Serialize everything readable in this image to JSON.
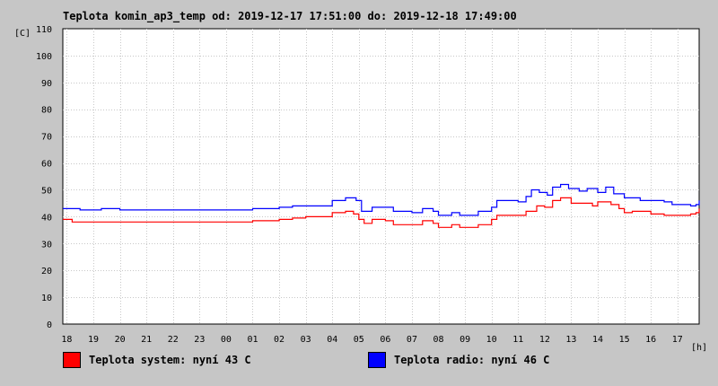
{
  "chart_data": {
    "type": "line",
    "title": "Teplota komin_ap3_temp od: 2019-12-17 17:51:00 do: 2019-12-18 17:49:00",
    "ylabel": "[C]",
    "xlabel": "[h]",
    "ylim": [
      0,
      110
    ],
    "yticks": [
      0,
      10,
      20,
      30,
      40,
      50,
      60,
      70,
      80,
      90,
      100,
      110
    ],
    "xlim": [
      17.85,
      41.82
    ],
    "xticks": [
      {
        "x": 18,
        "label": "18"
      },
      {
        "x": 19,
        "label": "19"
      },
      {
        "x": 20,
        "label": "20"
      },
      {
        "x": 21,
        "label": "21"
      },
      {
        "x": 22,
        "label": "22"
      },
      {
        "x": 23,
        "label": "23"
      },
      {
        "x": 24,
        "label": "00"
      },
      {
        "x": 25,
        "label": "01"
      },
      {
        "x": 26,
        "label": "02"
      },
      {
        "x": 27,
        "label": "03"
      },
      {
        "x": 28,
        "label": "04"
      },
      {
        "x": 29,
        "label": "05"
      },
      {
        "x": 30,
        "label": "06"
      },
      {
        "x": 31,
        "label": "07"
      },
      {
        "x": 32,
        "label": "08"
      },
      {
        "x": 33,
        "label": "09"
      },
      {
        "x": 34,
        "label": "10"
      },
      {
        "x": 35,
        "label": "11"
      },
      {
        "x": 36,
        "label": "12"
      },
      {
        "x": 37,
        "label": "13"
      },
      {
        "x": 38,
        "label": "14"
      },
      {
        "x": 39,
        "label": "15"
      },
      {
        "x": 40,
        "label": "16"
      },
      {
        "x": 41,
        "label": "17"
      }
    ],
    "grid": true,
    "legend_position": "bottom",
    "series": [
      {
        "name": "Teplota system",
        "legend": "Teplota system: nyní 43 C",
        "color": "#ff0000",
        "points": [
          [
            17.85,
            39
          ],
          [
            18.2,
            38
          ],
          [
            19,
            38
          ],
          [
            20,
            38
          ],
          [
            21,
            38
          ],
          [
            22,
            38
          ],
          [
            23,
            38
          ],
          [
            24,
            38
          ],
          [
            25,
            38.5
          ],
          [
            26,
            39
          ],
          [
            26.5,
            39.5
          ],
          [
            27,
            40
          ],
          [
            27.5,
            40
          ],
          [
            28,
            41.5
          ],
          [
            28.5,
            42
          ],
          [
            28.8,
            41
          ],
          [
            29,
            39
          ],
          [
            29.2,
            37.5
          ],
          [
            29.5,
            39
          ],
          [
            30,
            38.5
          ],
          [
            30.3,
            37
          ],
          [
            31,
            37
          ],
          [
            31.4,
            38.5
          ],
          [
            31.8,
            37.5
          ],
          [
            32,
            36
          ],
          [
            32.5,
            37
          ],
          [
            32.8,
            36
          ],
          [
            33,
            36
          ],
          [
            33.5,
            37
          ],
          [
            34,
            39
          ],
          [
            34.2,
            40.5
          ],
          [
            35,
            40.5
          ],
          [
            35.3,
            42
          ],
          [
            35.7,
            44
          ],
          [
            36,
            43.5
          ],
          [
            36.3,
            46
          ],
          [
            36.6,
            47
          ],
          [
            37,
            45
          ],
          [
            37.5,
            45
          ],
          [
            37.8,
            44
          ],
          [
            38,
            45.5
          ],
          [
            38.5,
            44.5
          ],
          [
            38.8,
            43
          ],
          [
            39,
            41.5
          ],
          [
            39.3,
            42
          ],
          [
            40,
            41
          ],
          [
            40.5,
            40.5
          ],
          [
            41,
            40.5
          ],
          [
            41.5,
            41
          ],
          [
            41.7,
            41.5
          ],
          [
            41.82,
            43
          ]
        ]
      },
      {
        "name": "Teplota radio",
        "legend": "Teplota radio: nyní 46 C",
        "color": "#0000ff",
        "points": [
          [
            17.85,
            43
          ],
          [
            18.5,
            42.5
          ],
          [
            19,
            42.5
          ],
          [
            19.3,
            43
          ],
          [
            20,
            42.5
          ],
          [
            21,
            42.5
          ],
          [
            22,
            42.5
          ],
          [
            23,
            42.5
          ],
          [
            24,
            42.5
          ],
          [
            25,
            43
          ],
          [
            26,
            43.5
          ],
          [
            26.5,
            44
          ],
          [
            27,
            44
          ],
          [
            27.5,
            44
          ],
          [
            28,
            46
          ],
          [
            28.5,
            47
          ],
          [
            28.9,
            46
          ],
          [
            29.1,
            42
          ],
          [
            29.5,
            43.5
          ],
          [
            30,
            43.5
          ],
          [
            30.3,
            42
          ],
          [
            31,
            41.5
          ],
          [
            31.4,
            43
          ],
          [
            31.8,
            42
          ],
          [
            32,
            40.5
          ],
          [
            32.5,
            41.5
          ],
          [
            32.8,
            40.5
          ],
          [
            33,
            40.5
          ],
          [
            33.5,
            42
          ],
          [
            34,
            43.5
          ],
          [
            34.2,
            46
          ],
          [
            35,
            45.5
          ],
          [
            35.3,
            47.5
          ],
          [
            35.5,
            50
          ],
          [
            35.8,
            49
          ],
          [
            36.1,
            48
          ],
          [
            36.3,
            51
          ],
          [
            36.6,
            52
          ],
          [
            36.9,
            50.5
          ],
          [
            37.3,
            49.5
          ],
          [
            37.6,
            50.5
          ],
          [
            38,
            49
          ],
          [
            38.3,
            51
          ],
          [
            38.6,
            48.5
          ],
          [
            39,
            47
          ],
          [
            39.3,
            47
          ],
          [
            39.6,
            46
          ],
          [
            40,
            46
          ],
          [
            40.5,
            45.5
          ],
          [
            40.8,
            44.5
          ],
          [
            41.2,
            44.5
          ],
          [
            41.5,
            44
          ],
          [
            41.7,
            44.5
          ],
          [
            41.82,
            46
          ]
        ]
      }
    ]
  }
}
